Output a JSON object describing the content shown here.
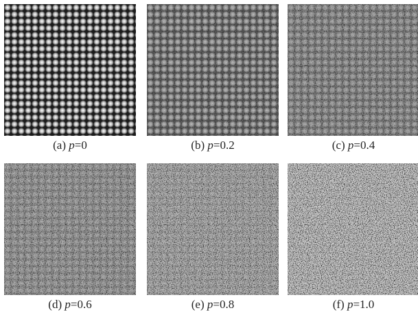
{
  "panels": [
    {
      "tag": "(a)",
      "symbol": "p",
      "rest": "=0"
    },
    {
      "tag": "(b)",
      "symbol": "p",
      "rest": "=0.2"
    },
    {
      "tag": "(c)",
      "symbol": "p",
      "rest": "=0.4"
    },
    {
      "tag": "(d)",
      "symbol": "p",
      "rest": "=0.6"
    },
    {
      "tag": "(e)",
      "symbol": "p",
      "rest": "=0.8"
    },
    {
      "tag": "(f)",
      "symbol": "p",
      "rest": "=1.0"
    }
  ]
}
